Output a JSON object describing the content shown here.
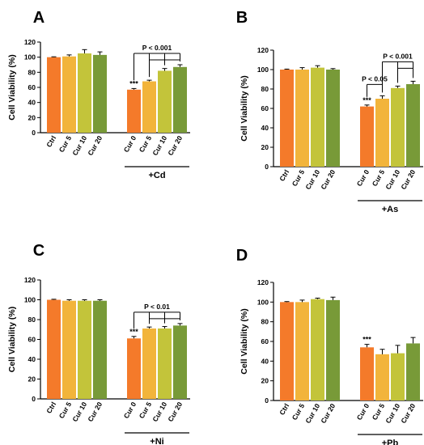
{
  "colors": {
    "ctrl": "#f47a2a",
    "cur5": "#f2b43b",
    "cur10": "#c3c43a",
    "cur20": "#789a38",
    "axis": "#000000"
  },
  "chart_data": [
    {
      "type": "bar",
      "panel": "A",
      "ylabel": "Cell Viability (%)",
      "ylim": [
        0,
        120
      ],
      "yticks": [
        "0",
        "20",
        "40",
        "60",
        "80",
        "100",
        "120"
      ],
      "group_label": "+Cd",
      "categories": [
        "Ctrl",
        "Cur 5",
        "Cur 10",
        "Cur 20",
        "Cur 0",
        "Cur 5",
        "Cur 10",
        "Cur 20"
      ],
      "values": [
        100,
        101,
        105,
        103,
        57,
        68,
        82,
        87
      ],
      "errors": [
        0.5,
        2,
        5,
        4,
        1.5,
        1.5,
        3,
        3
      ],
      "significance": [
        null,
        null,
        null,
        null,
        "***",
        null,
        null,
        null
      ],
      "p_annotations": [
        {
          "text": "P < 0.001",
          "from": 4,
          "to": [
            5,
            6,
            7
          ]
        }
      ]
    },
    {
      "type": "bar",
      "panel": "B",
      "ylabel": "Cell Viability (%)",
      "ylim": [
        0,
        120
      ],
      "yticks": [
        "0",
        "20",
        "40",
        "60",
        "80",
        "100",
        "120"
      ],
      "group_label": "+As",
      "categories": [
        "Ctrl",
        "Cur 5",
        "Cur 10",
        "Cur 20",
        "Cur 0",
        "Cur 5",
        "Cur 10",
        "Cur 20"
      ],
      "values": [
        100,
        100,
        102,
        100,
        62,
        70,
        81,
        85
      ],
      "errors": [
        0.5,
        2,
        2,
        1,
        1.5,
        3,
        2,
        3
      ],
      "significance": [
        null,
        null,
        null,
        null,
        "***",
        null,
        null,
        null
      ],
      "p_annotations": [
        {
          "text": "P < 0.05",
          "from": 4,
          "to": [
            5
          ]
        },
        {
          "text": "P < 0.001",
          "from": 5,
          "to": [
            6,
            7
          ]
        }
      ]
    },
    {
      "type": "bar",
      "panel": "C",
      "ylabel": "Cell Viability (%)",
      "ylim": [
        0,
        120
      ],
      "yticks": [
        "0",
        "20",
        "40",
        "60",
        "80",
        "100",
        "120"
      ],
      "group_label": "+Ni",
      "categories": [
        "Ctrl",
        "Cur 5",
        "Cur 10",
        "Cur 20",
        "Cur 0",
        "Cur 5",
        "Cur 10",
        "Cur 20"
      ],
      "values": [
        100,
        99,
        99,
        99,
        61,
        71,
        71,
        74
      ],
      "errors": [
        0.5,
        1,
        1,
        1,
        2,
        1.5,
        2,
        2
      ],
      "significance": [
        null,
        null,
        null,
        null,
        "***",
        null,
        null,
        null
      ],
      "p_annotations": [
        {
          "text": "P < 0.01",
          "from": 4,
          "to": [
            5,
            6,
            7
          ]
        }
      ]
    },
    {
      "type": "bar",
      "panel": "D",
      "ylabel": "Cell Viability (%)",
      "ylim": [
        0,
        120
      ],
      "yticks": [
        "0",
        "20",
        "40",
        "60",
        "80",
        "100",
        "120"
      ],
      "group_label": "+Pb",
      "categories": [
        "Ctrl",
        "Cur 5",
        "Cur 10",
        "Cur 20",
        "Cur 0",
        "Cur 5",
        "Cur 10",
        "Cur 20"
      ],
      "values": [
        100,
        100,
        103,
        102,
        54,
        47,
        48,
        58
      ],
      "errors": [
        0.5,
        2,
        1,
        3,
        3,
        5,
        8,
        6
      ],
      "significance": [
        null,
        null,
        null,
        null,
        "***",
        null,
        null,
        null
      ],
      "p_annotations": []
    }
  ]
}
